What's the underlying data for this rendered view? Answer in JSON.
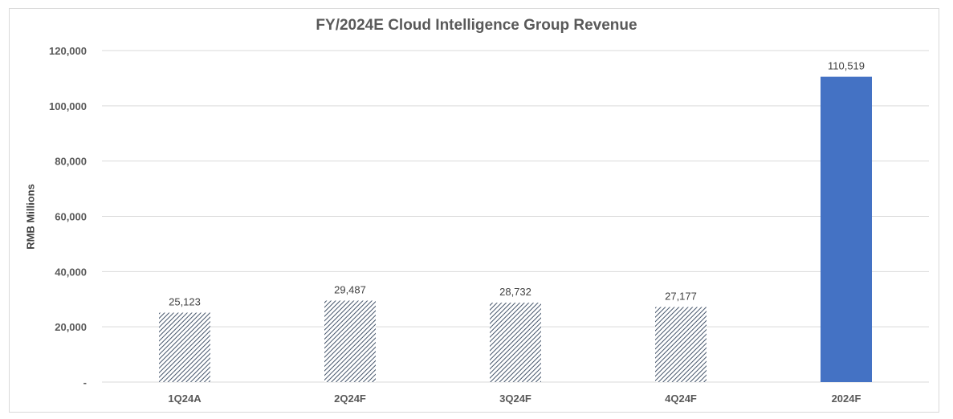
{
  "chart_data": {
    "type": "bar",
    "title": "FY/2024E Cloud Intelligence Group Revenue",
    "xlabel": "",
    "ylabel": "RMB Millions",
    "categories": [
      "1Q24A",
      "2Q24F",
      "3Q24F",
      "4Q24F",
      "2024F"
    ],
    "values": [
      25123,
      29487,
      28732,
      27177,
      110519
    ],
    "data_labels": [
      "25,123",
      "29,487",
      "28,732",
      "27,177",
      "110,519"
    ],
    "bar_styles": [
      "hatched",
      "hatched",
      "hatched",
      "hatched",
      "solid"
    ],
    "ylim": [
      0,
      120000
    ],
    "yticks": [
      0,
      20000,
      40000,
      60000,
      80000,
      100000,
      120000
    ],
    "ytick_labels": [
      "-",
      "20,000",
      "40,000",
      "60,000",
      "80,000",
      "100,000",
      "120,000"
    ],
    "grid": true,
    "colors": {
      "solid": "#4472c4",
      "hatch": "#44546a",
      "grid": "#d9d9d9",
      "text": "#595959"
    }
  }
}
